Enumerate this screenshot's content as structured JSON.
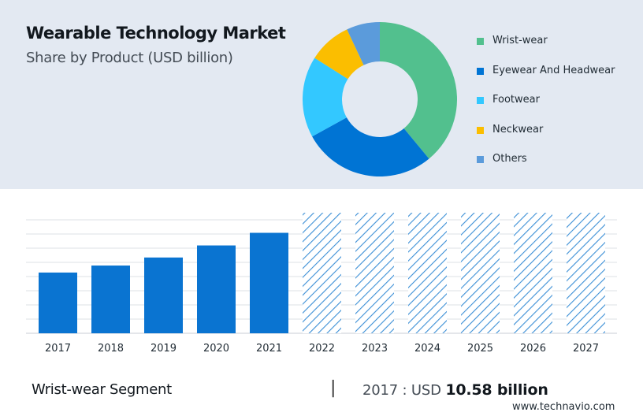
{
  "header": {
    "title": "Wearable Technology Market",
    "subtitle": "Share by Product (USD billion)"
  },
  "chart_data": [
    {
      "type": "pie",
      "variant": "donut",
      "title": "Wearable Technology Market",
      "subtitle": "Share by Product (USD billion)",
      "legend_position": "right",
      "categories": [
        "Wrist-wear",
        "Eyewear And Headwear",
        "Footwear",
        "Neckwear",
        "Others"
      ],
      "values": [
        39,
        28,
        17,
        9,
        7
      ],
      "colors": [
        "#52c08e",
        "#0074d4",
        "#33c8ff",
        "#fbbe00",
        "#5b9bdb"
      ]
    },
    {
      "type": "bar",
      "categories": [
        "2017",
        "2018",
        "2019",
        "2020",
        "2021",
        "2022",
        "2023",
        "2024",
        "2025",
        "2026",
        "2027"
      ],
      "values": [
        10.58,
        11.8,
        13.2,
        15.3,
        17.5,
        null,
        null,
        null,
        null,
        null,
        null
      ],
      "forecast_categories": [
        "2022",
        "2023",
        "2024",
        "2025",
        "2026",
        "2027"
      ],
      "bar_color": "#0a74d1",
      "forecast_pattern": "diagonal-hatch",
      "forecast_color": "#3b8fd6",
      "ylim": [
        0,
        21
      ],
      "grid": true,
      "xlabel": "",
      "ylabel": ""
    }
  ],
  "footer": {
    "segment": "Wrist-wear Segment",
    "separator": "|",
    "value_prefix": "2017 : USD ",
    "value_bold": "10.58 billion",
    "source": "www.technavio.com"
  }
}
